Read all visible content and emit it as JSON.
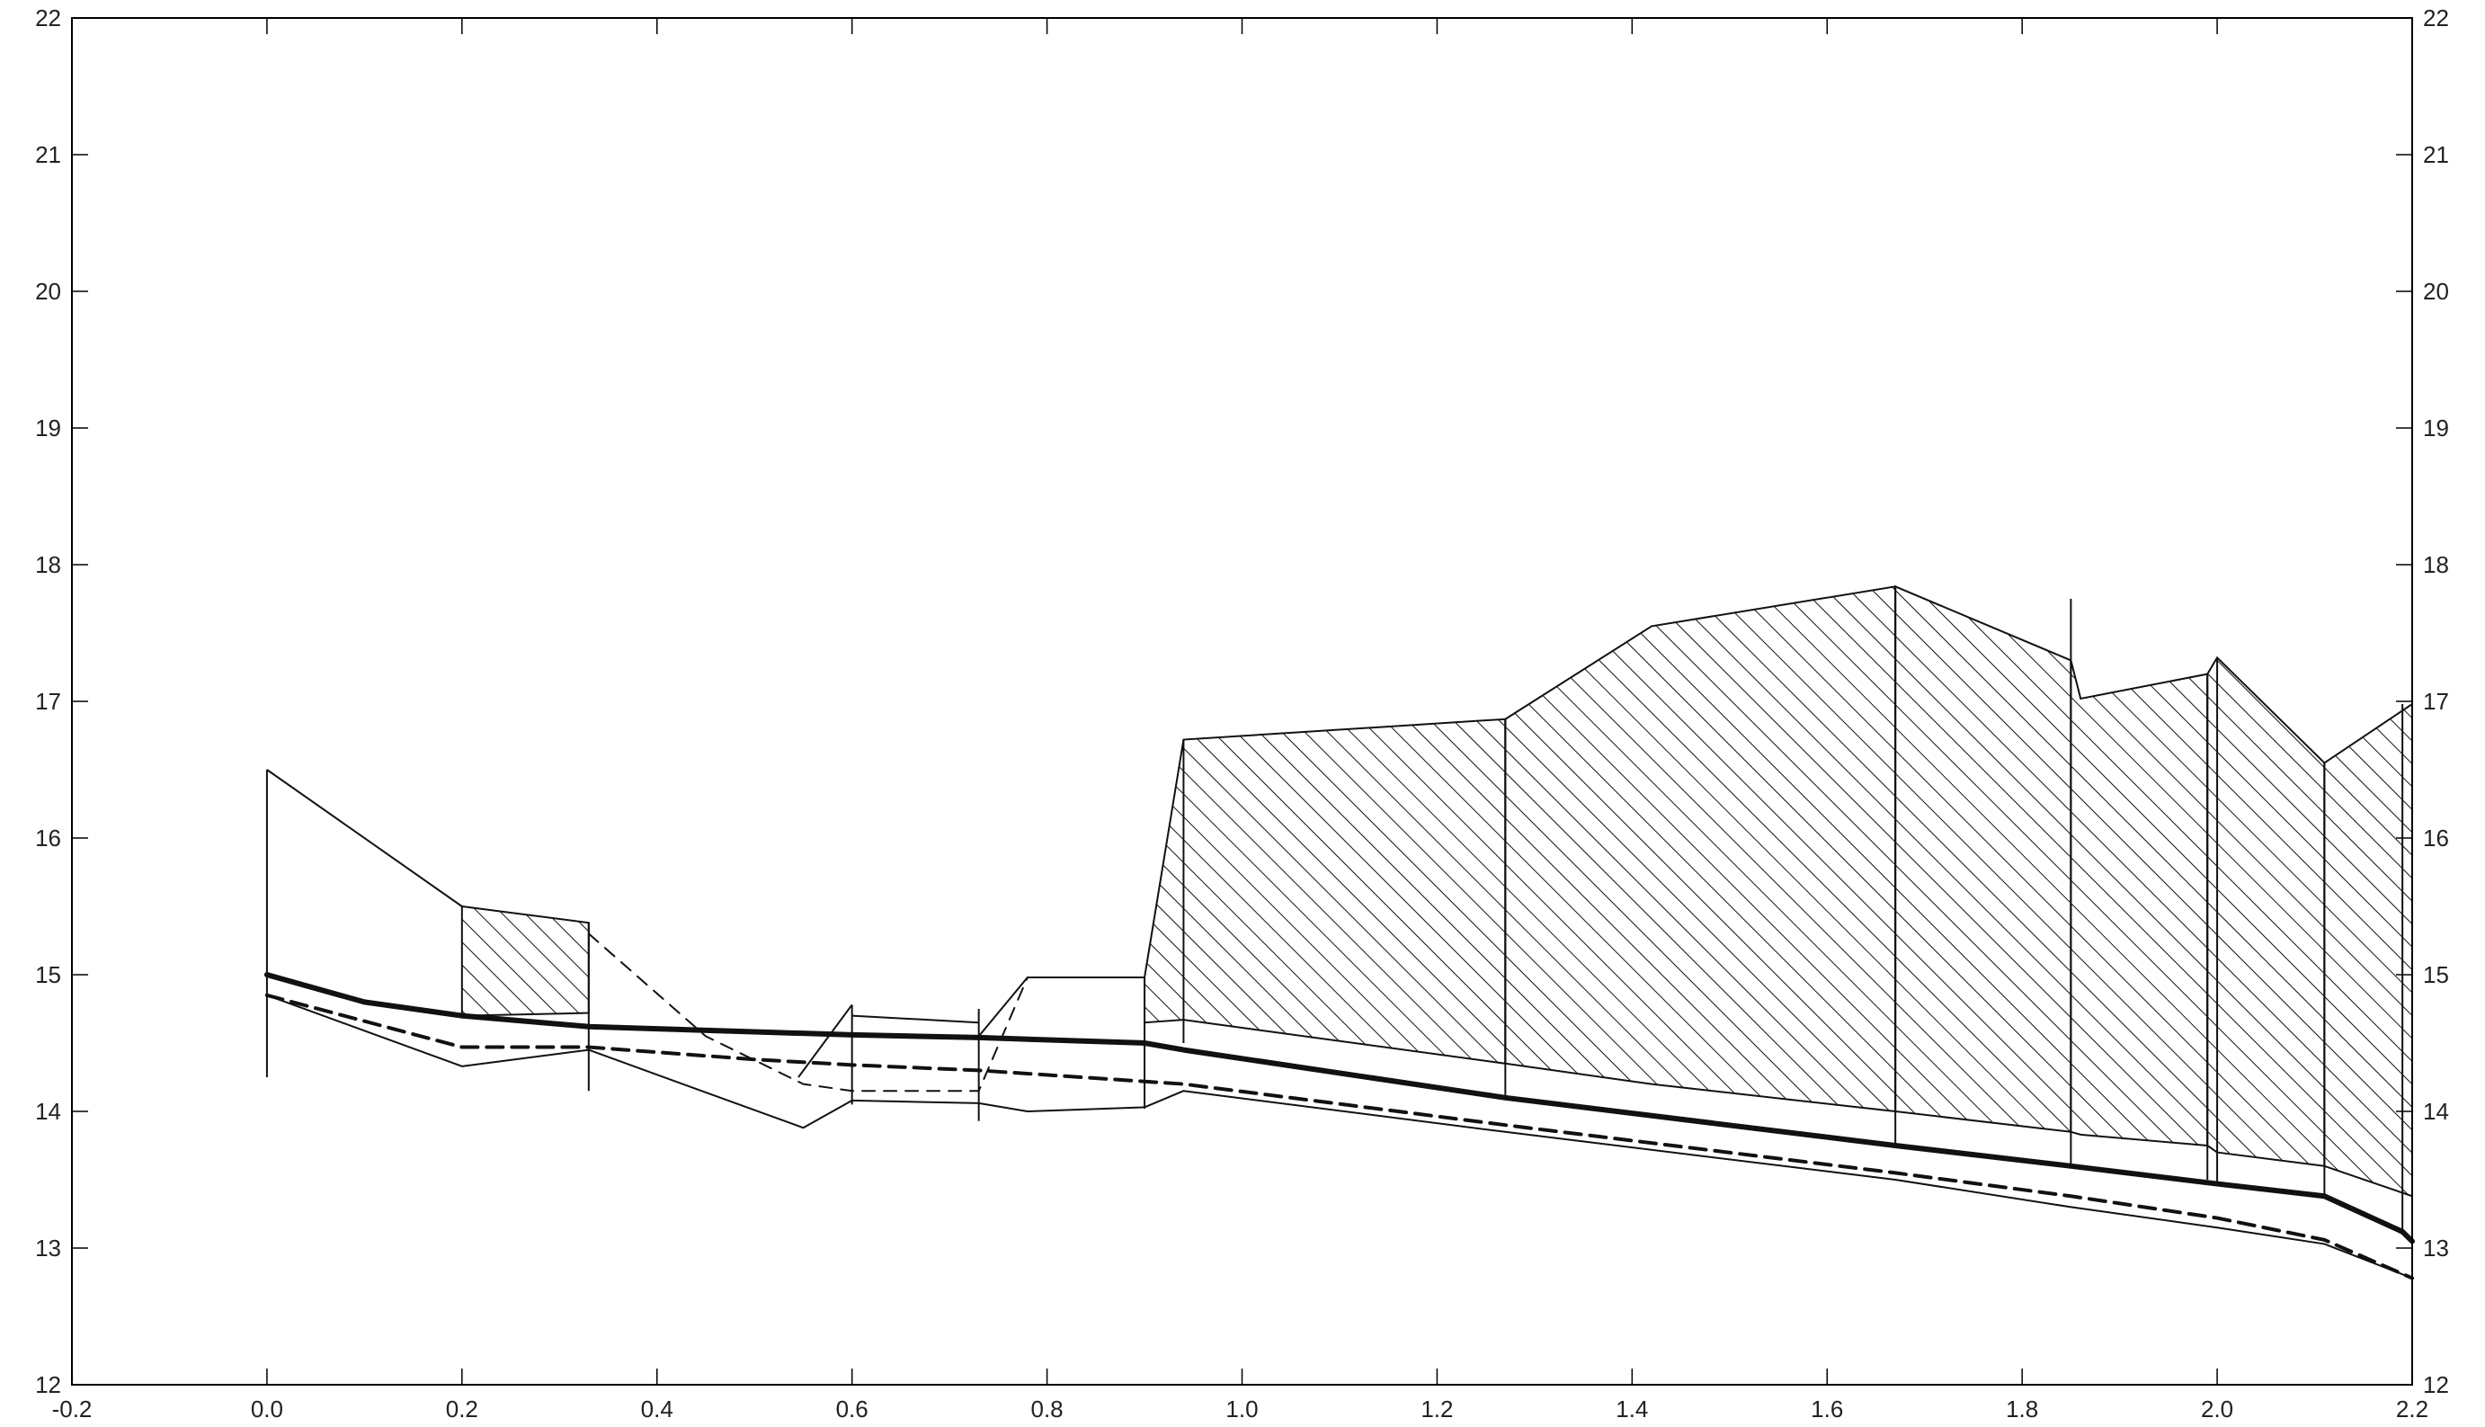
{
  "chart_data": {
    "type": "area",
    "title": "",
    "xlabel": "",
    "ylabel": "",
    "xlim": [
      -0.2,
      2.2
    ],
    "ylim": [
      12,
      22
    ],
    "xticks": [
      -0.2,
      0.0,
      0.2,
      0.4,
      0.6,
      0.8,
      1.0,
      1.2,
      1.4,
      1.6,
      1.8,
      2.0,
      2.2
    ],
    "xtick_labels": [
      "-0.2",
      "0.0",
      "0.2",
      "0.4",
      "0.6",
      "0.8",
      "1.0",
      "1.2",
      "1.4",
      "1.6",
      "1.8",
      "2.0",
      "2.2"
    ],
    "yticks": [
      12,
      13,
      14,
      15,
      16,
      17,
      18,
      19,
      20,
      21,
      22
    ],
    "ytick_labels": [
      "12",
      "13",
      "14",
      "15",
      "16",
      "17",
      "18",
      "19",
      "20",
      "21",
      "22"
    ],
    "grid": false,
    "hatched_regions": [
      {
        "x": [
          0.0,
          0.2,
          0.2,
          0.0
        ],
        "top": [
          16.5,
          15.5
        ],
        "bottom": [
          15.15,
          14.7
        ]
      },
      {
        "x": [
          0.2,
          0.33
        ],
        "top": [
          15.5,
          15.38
        ],
        "bottom": [
          14.7,
          14.72
        ]
      },
      {
        "x": [
          0.9,
          0.94,
          1.27
        ],
        "top": [
          14.98,
          16.72,
          16.87
        ],
        "bottom": [
          14.65,
          14.67,
          14.35
        ]
      },
      {
        "x": [
          1.27,
          1.42,
          1.67
        ],
        "top": [
          16.87,
          17.55,
          17.84
        ],
        "bottom": [
          14.35,
          14.2,
          14.0
        ]
      },
      {
        "x": [
          1.67,
          1.85
        ],
        "top": [
          17.84,
          17.3
        ],
        "bottom": [
          14.0,
          13.85
        ]
      },
      {
        "x": [
          1.85,
          1.86,
          1.99
        ],
        "top": [
          17.3,
          17.02,
          17.2
        ],
        "bottom": [
          13.85,
          13.83,
          13.75
        ]
      },
      {
        "x": [
          1.99,
          2.0,
          2.11
        ],
        "top": [
          17.2,
          17.32,
          16.55
        ],
        "bottom": [
          13.75,
          13.7,
          13.6
        ]
      },
      {
        "x": [
          2.11,
          2.2
        ],
        "top": [
          16.55,
          16.98
        ],
        "bottom": [
          13.6,
          13.38
        ]
      }
    ],
    "series": [
      {
        "style": "thick-solid",
        "x": [
          0.0,
          0.1,
          0.2,
          0.33,
          0.6,
          0.73,
          0.9,
          0.94,
          1.27,
          1.67,
          1.85,
          2.0,
          2.11,
          2.19,
          2.2
        ],
        "y": [
          15.0,
          14.8,
          14.7,
          14.62,
          14.56,
          14.54,
          14.5,
          14.45,
          14.1,
          13.75,
          13.6,
          13.47,
          13.38,
          13.12,
          13.05
        ]
      },
      {
        "style": "thick-dashed",
        "x": [
          0.0,
          0.2,
          0.33,
          0.5,
          0.6,
          0.73,
          0.94,
          1.27,
          1.67,
          1.85,
          2.0,
          2.11,
          2.2
        ],
        "y": [
          14.85,
          14.47,
          14.47,
          14.38,
          14.34,
          14.3,
          14.2,
          13.9,
          13.55,
          13.38,
          13.22,
          13.06,
          12.78
        ]
      },
      {
        "style": "thin-solid",
        "x": [
          0.0,
          0.2,
          0.33,
          0.55,
          0.6,
          0.73,
          0.78,
          0.9,
          0.94,
          1.27,
          1.67,
          1.85,
          2.0,
          2.11,
          2.2
        ],
        "y": [
          14.85,
          14.33,
          14.45,
          13.88,
          14.08,
          14.06,
          14.0,
          14.03,
          14.15,
          13.85,
          13.5,
          13.3,
          13.15,
          13.03,
          12.78
        ]
      },
      {
        "style": "thin-dashed",
        "x": [
          0.33,
          0.45,
          0.55,
          0.6,
          0.73,
          0.78
        ],
        "y": [
          15.3,
          14.55,
          14.2,
          14.15,
          14.15,
          14.98
        ]
      }
    ],
    "structures": [
      {
        "x": [
          0.33,
          0.33
        ],
        "y": [
          14.15,
          15.38
        ]
      },
      {
        "x": [
          0.545,
          0.6
        ],
        "y": [
          14.25,
          14.78
        ]
      },
      {
        "x": [
          0.6,
          0.6
        ],
        "y": [
          14.05,
          14.78
        ]
      },
      {
        "x": [
          0.6,
          0.73
        ],
        "y": [
          14.7,
          14.65
        ]
      },
      {
        "x": [
          0.73,
          0.73
        ],
        "y": [
          13.93,
          14.75
        ]
      },
      {
        "x": [
          0.73,
          0.78,
          0.9
        ],
        "y": [
          14.55,
          14.98,
          14.98
        ]
      },
      {
        "x": [
          0.9,
          0.9
        ],
        "y": [
          14.02,
          14.98
        ]
      },
      {
        "x": [
          0.94,
          0.94
        ],
        "y": [
          14.5,
          16.72
        ]
      },
      {
        "x": [
          1.27,
          1.27
        ],
        "y": [
          14.1,
          16.87
        ]
      },
      {
        "x": [
          1.67,
          1.67
        ],
        "y": [
          13.75,
          17.84
        ]
      },
      {
        "x": [
          1.85,
          1.85
        ],
        "y": [
          13.6,
          17.75
        ]
      },
      {
        "x": [
          1.99,
          1.99
        ],
        "y": [
          13.5,
          17.2
        ]
      },
      {
        "x": [
          2.0,
          2.0
        ],
        "y": [
          13.47,
          17.32
        ]
      },
      {
        "x": [
          2.11,
          2.11
        ],
        "y": [
          13.38,
          16.55
        ]
      },
      {
        "x": [
          2.19,
          2.19
        ],
        "y": [
          13.1,
          16.98
        ]
      },
      {
        "x": [
          0.0,
          0.0
        ],
        "y": [
          14.25,
          16.5
        ]
      }
    ]
  }
}
